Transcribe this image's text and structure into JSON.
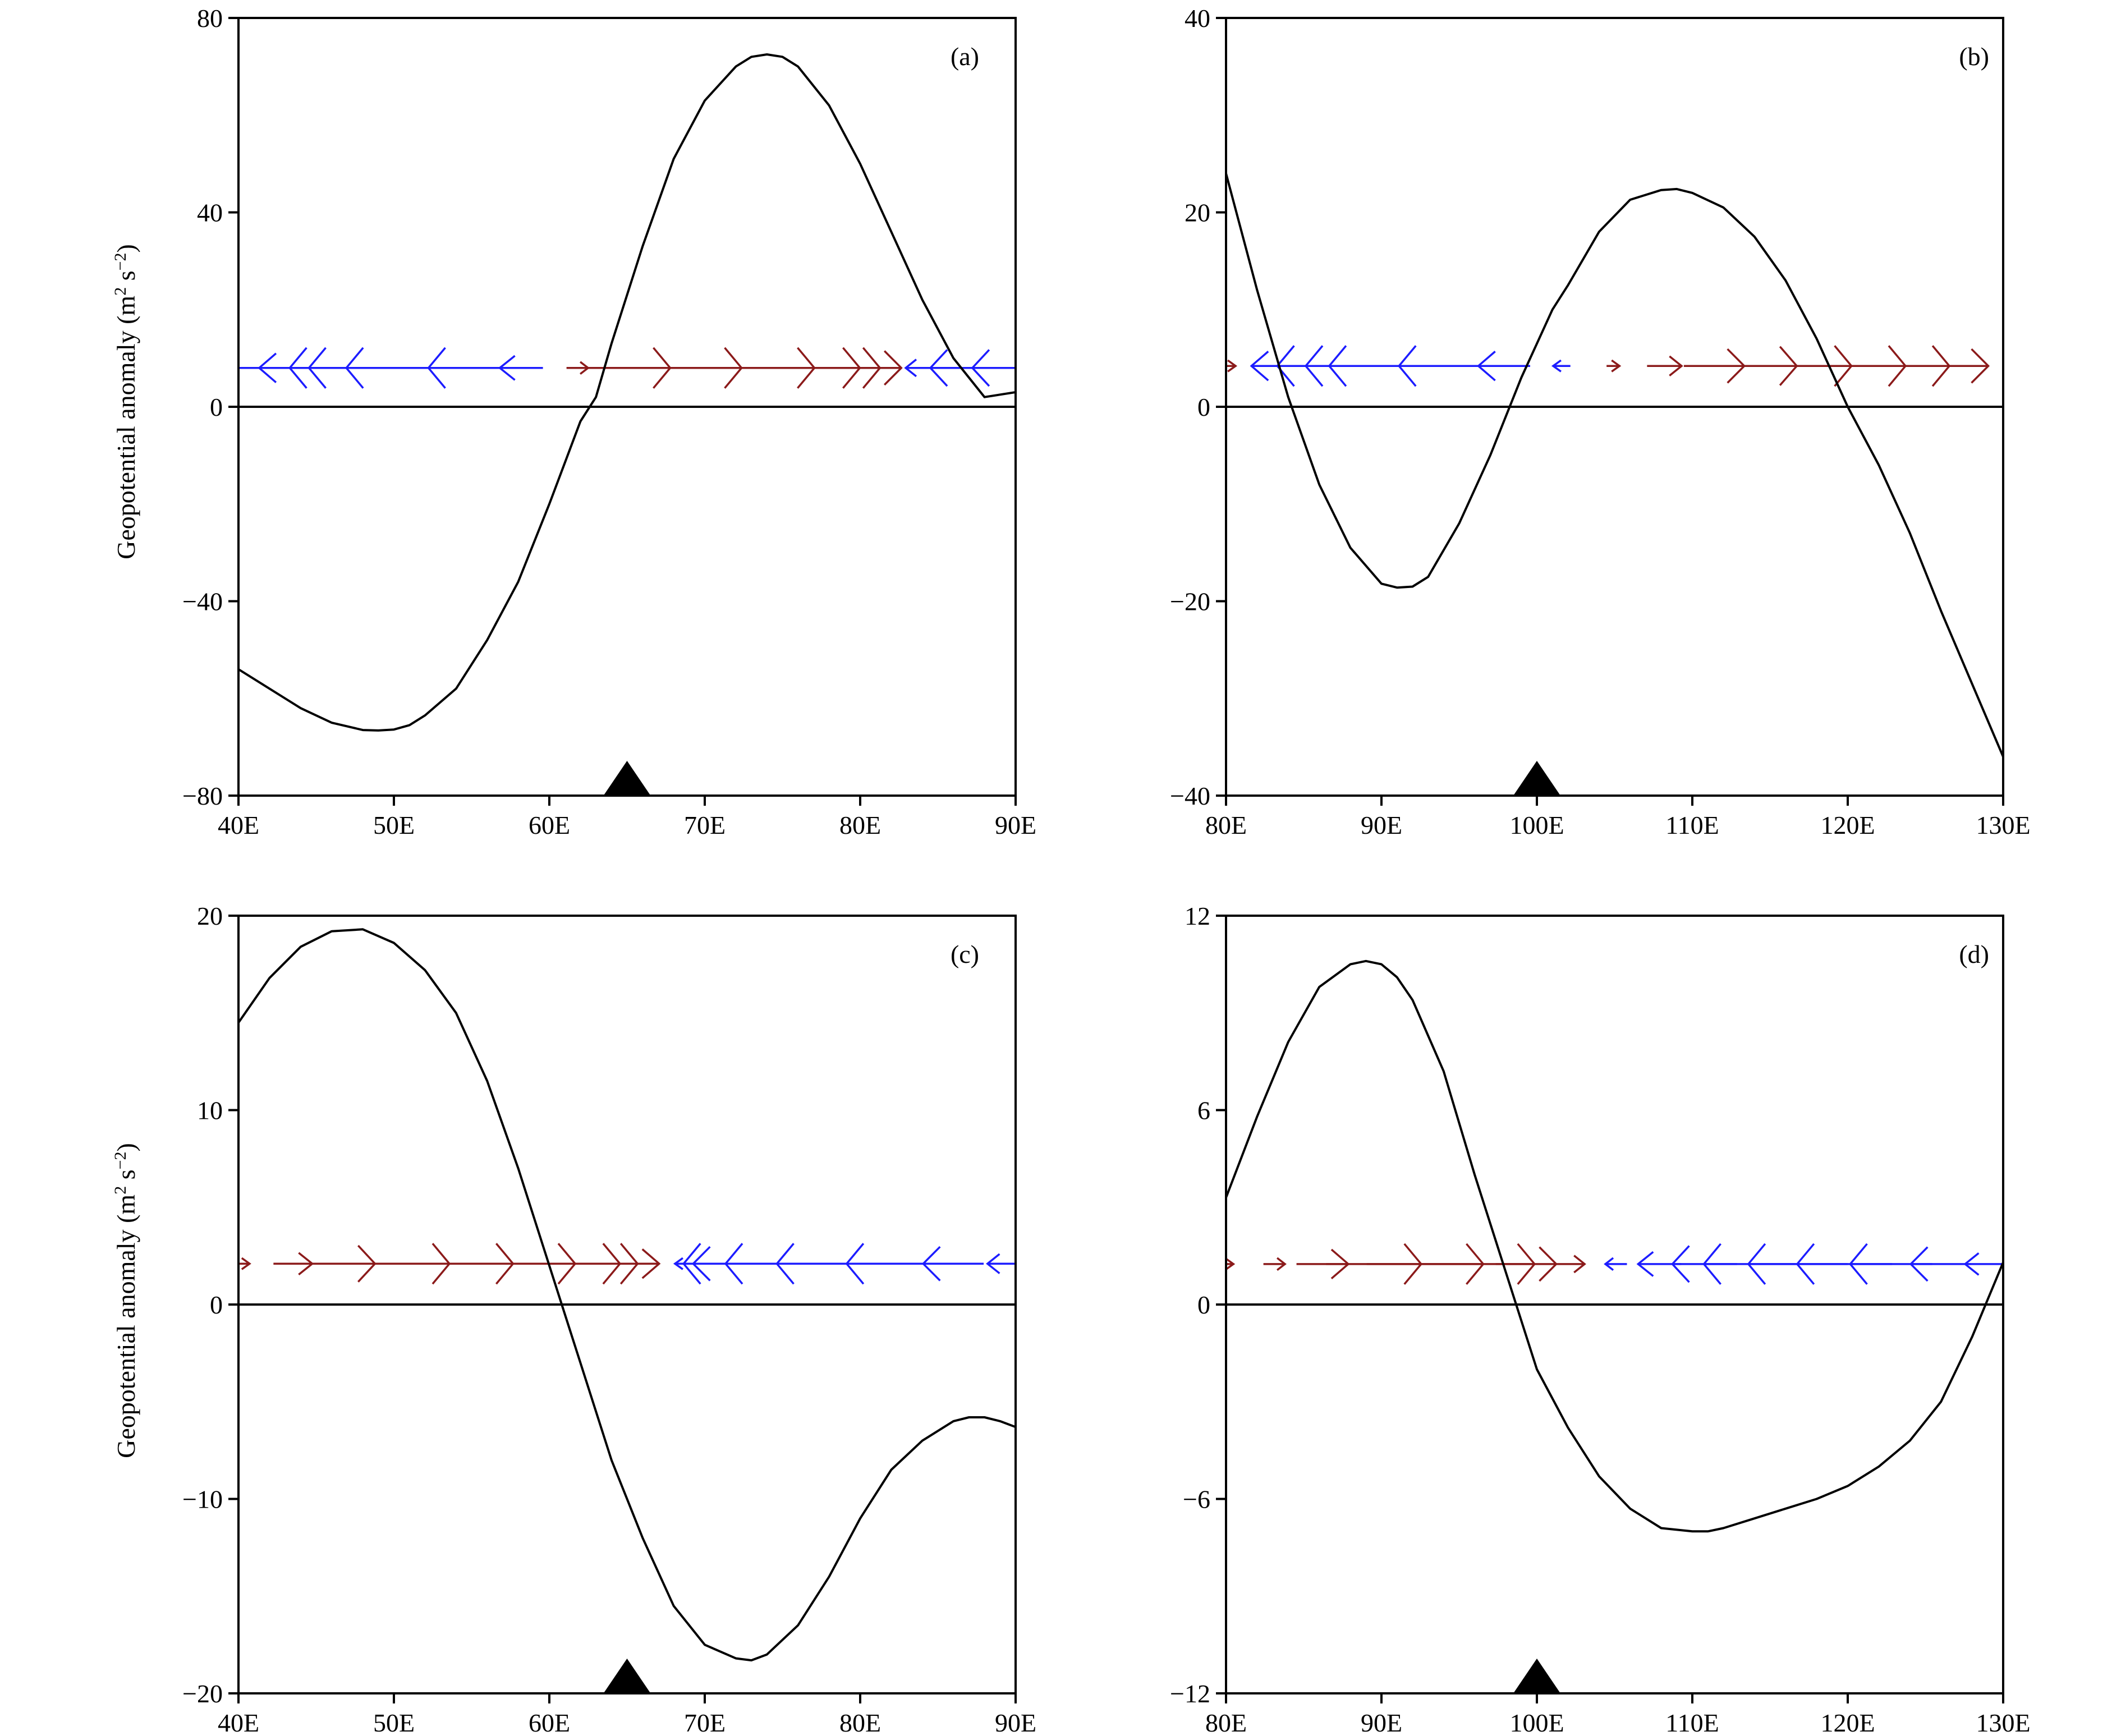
{
  "colors": {
    "line": "#000000",
    "eastward_arrow": "#8b1a1a",
    "westward_arrow": "#1c1cff",
    "marker": "#000000"
  },
  "marker_icon": "filled-triangle-icon",
  "chart_data": [
    {
      "type": "line",
      "panel_label": "(a)",
      "ylabel_text": "Geopotential anomaly (m",
      "ylabel_sup1": "2",
      "ylabel_mid": " s",
      "ylabel_sup2": "−2",
      "ylabel_end": ")",
      "xlim": [
        40,
        90
      ],
      "ylim": [
        -80,
        80
      ],
      "xticks": [
        40,
        50,
        60,
        70,
        80,
        90
      ],
      "xtick_labels": [
        "40E",
        "50E",
        "60E",
        "70E",
        "80E",
        "90E"
      ],
      "yticks": [
        -80,
        -40,
        0,
        40,
        80
      ],
      "ytick_labels": [
        "−80",
        "−40",
        "0",
        "40",
        "80"
      ],
      "marker_x": 65,
      "arrow_row_y": 8,
      "series": [
        {
          "x": [
            40,
            42,
            44,
            46,
            48,
            49,
            50,
            51,
            52,
            54,
            56,
            58,
            60,
            62,
            63,
            64,
            66,
            68,
            70,
            72,
            73,
            74,
            75,
            76,
            78,
            80,
            82,
            84,
            86,
            88,
            90
          ],
          "y": [
            -54,
            -58,
            -62,
            -65,
            -66.5,
            -66.6,
            -66.4,
            -65.5,
            -63.5,
            -58,
            -48,
            -36,
            -20,
            -3,
            2,
            13,
            33,
            51,
            63,
            70,
            72,
            72.5,
            72,
            70,
            62,
            50,
            36,
            22,
            10,
            2,
            3
          ]
        }
      ],
      "arrows": {
        "x": [
          40.3,
          43,
          45.8,
          48.7,
          51.8,
          55,
          58.2,
          61.8,
          65,
          68.2,
          71.5,
          74.7,
          77.8,
          80.7,
          83.9,
          86.6,
          89.3
        ],
        "u": [
          -0.8,
          -1.2,
          -1.8,
          -3,
          -3.5,
          -2,
          -1,
          0.5,
          2,
          3,
          4,
          3.8,
          2.5,
          1.4,
          -0.7,
          -1.5,
          -1.5
        ]
      }
    },
    {
      "type": "line",
      "panel_label": "(b)",
      "ylabel_text": "",
      "ylabel_sup1": "",
      "ylabel_mid": "",
      "ylabel_sup2": "",
      "ylabel_end": "",
      "xlim": [
        80,
        130
      ],
      "ylim": [
        -40,
        40
      ],
      "xticks": [
        80,
        90,
        100,
        110,
        120,
        130
      ],
      "xtick_labels": [
        "80E",
        "90E",
        "100E",
        "110E",
        "120E",
        "130E"
      ],
      "yticks": [
        -40,
        -20,
        0,
        20,
        40
      ],
      "ytick_labels": [
        "−40",
        "−20",
        "0",
        "20",
        "40"
      ],
      "marker_x": 100,
      "arrow_row_y": 4.2,
      "series": [
        {
          "x": [
            80,
            82,
            84,
            86,
            88,
            90,
            91,
            92,
            93,
            95,
            97,
            99,
            100,
            101,
            102,
            104,
            106,
            108,
            109,
            110,
            112,
            114,
            116,
            118,
            120,
            122,
            124,
            126,
            128,
            130
          ],
          "y": [
            24,
            12,
            1,
            -8,
            -14.5,
            -18.2,
            -18.6,
            -18.5,
            -17.5,
            -12,
            -5,
            3,
            6.5,
            10,
            12.5,
            18,
            21.3,
            22.3,
            22.4,
            22,
            20.5,
            17.5,
            13,
            7,
            0,
            -6,
            -13,
            -21,
            -28.5,
            -36
          ]
        }
      ],
      "arrows": {
        "x": [
          80.2,
          83.3,
          85.8,
          88.6,
          91.5,
          94.6,
          97.9,
          101.6,
          104.9,
          108.2,
          111.4,
          114.5,
          117.6,
          120.8,
          123.9,
          127.1
        ],
        "u": [
          0.3,
          -1.2,
          -1.8,
          -2.5,
          -3.5,
          -2.5,
          -1.2,
          -0.4,
          0.3,
          0.8,
          1.4,
          1.6,
          1.9,
          2.1,
          1.9,
          1.4
        ]
      }
    },
    {
      "type": "line",
      "panel_label": "(c)",
      "ylabel_text": "Geopotential anomaly (m",
      "ylabel_sup1": "2",
      "ylabel_mid": " s",
      "ylabel_sup2": "−2",
      "ylabel_end": ")",
      "xlim": [
        40,
        90
      ],
      "ylim": [
        -20,
        20
      ],
      "xticks": [
        40,
        50,
        60,
        70,
        80,
        90
      ],
      "xtick_labels": [
        "40E",
        "50E",
        "60E",
        "70E",
        "80E",
        "90E"
      ],
      "yticks": [
        -20,
        -10,
        0,
        10,
        20
      ],
      "ytick_labels": [
        "−20",
        "−10",
        "0",
        "10",
        "20"
      ],
      "marker_x": 65,
      "arrow_row_y": 2.1,
      "series": [
        {
          "x": [
            40,
            42,
            44,
            46,
            48,
            50,
            52,
            54,
            56,
            58,
            60,
            62,
            64,
            66,
            68,
            70,
            72,
            73,
            74,
            76,
            78,
            80,
            82,
            84,
            86,
            87,
            88,
            89,
            90
          ],
          "y": [
            14.5,
            16.8,
            18.4,
            19.2,
            19.3,
            18.6,
            17.2,
            15,
            11.5,
            7,
            2,
            -3,
            -8,
            -12,
            -15.5,
            -17.5,
            -18.2,
            -18.3,
            -18,
            -16.5,
            -14,
            -11,
            -8.5,
            -7,
            -6,
            -5.8,
            -5.8,
            -6,
            -6.3
          ]
        }
      ],
      "arrows": {
        "x": [
          40.3,
          43.5,
          46.7,
          50.1,
          53.5,
          56.8,
          60.1,
          62.9,
          65.4,
          68.5,
          71.2,
          73.5,
          76.2,
          79.5,
          82.6,
          86,
          89.3
        ],
        "u": [
          0.3,
          0.9,
          1.5,
          2.5,
          3,
          3.5,
          3.2,
          2,
          1.2,
          -0.3,
          -1.4,
          -3.5,
          -3.5,
          -3.5,
          -2.5,
          -1.4,
          -0.8
        ]
      }
    },
    {
      "type": "line",
      "panel_label": "(d)",
      "ylabel_text": "",
      "ylabel_sup1": "",
      "ylabel_mid": "",
      "ylabel_sup2": "",
      "ylabel_end": "",
      "xlim": [
        80,
        130
      ],
      "ylim": [
        -12,
        12
      ],
      "xticks": [
        80,
        90,
        100,
        110,
        120,
        130
      ],
      "xtick_labels": [
        "80E",
        "90E",
        "100E",
        "110E",
        "120E",
        "130E"
      ],
      "yticks": [
        -12,
        -6,
        0,
        6,
        12
      ],
      "ytick_labels": [
        "−12",
        "−6",
        "0",
        "6",
        "12"
      ],
      "marker_x": 100,
      "arrow_row_y": 1.25,
      "series": [
        {
          "x": [
            80,
            82,
            84,
            86,
            88,
            89,
            90,
            91,
            92,
            94,
            96,
            98,
            100,
            102,
            104,
            106,
            108,
            110,
            111,
            112,
            114,
            116,
            118,
            120,
            122,
            124,
            126,
            128,
            130
          ],
          "y": [
            3.3,
            5.8,
            8.1,
            9.8,
            10.5,
            10.6,
            10.5,
            10.1,
            9.4,
            7.2,
            4,
            1,
            -2,
            -3.8,
            -5.3,
            -6.3,
            -6.9,
            -7,
            -7,
            -6.9,
            -6.6,
            -6.3,
            -6,
            -5.6,
            -5,
            -4.2,
            -3,
            -1,
            1.3
          ]
        }
      ],
      "arrows": {
        "x": [
          80.2,
          83.1,
          86.2,
          89.5,
          92.8,
          96.1,
          99.3,
          102.1,
          105.1,
          107.9,
          110.8,
          113.8,
          116.8,
          119.8,
          122.8,
          126,
          128.8
        ],
        "u": [
          0.2,
          0.5,
          1.2,
          2.2,
          2.7,
          2.7,
          1.4,
          0.7,
          -0.5,
          -1,
          -1.5,
          -2.2,
          -2.3,
          -2.2,
          -1.9,
          -1.4,
          -0.9
        ]
      }
    }
  ]
}
